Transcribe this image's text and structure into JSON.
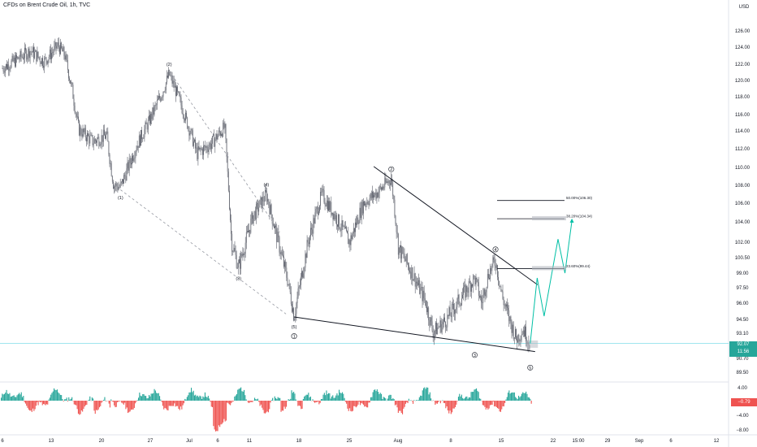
{
  "header": {
    "title": "CFDs on Brent Crude Oil, 1h, TVC"
  },
  "axis": {
    "currency": "USD"
  },
  "last_price": {
    "value": "92.07",
    "countdown": "11:56",
    "color": "#26a69a"
  },
  "oscillator": {
    "last_value": "−0.79",
    "color_up": "#26a69a",
    "color_down": "#ef5350"
  },
  "colors": {
    "candle": "#5d606b",
    "trendline": "#131722",
    "projection": "#00bfa5",
    "crosshair": "#80deea",
    "box": "#b2b5be"
  },
  "chart_data": {
    "type": "candlestick",
    "title": "CFDs on Brent Crude Oil, 1h, TVC",
    "ylabel": "USD",
    "ylim": [
      88.6,
      129.5
    ],
    "y_ticks": [
      "126.00",
      "124.00",
      "122.00",
      "120.00",
      "118.00",
      "116.00",
      "114.00",
      "112.00",
      "110.00",
      "108.00",
      "106.00",
      "104.00",
      "102.00",
      "100.50",
      "99.00",
      "97.50",
      "96.00",
      "94.50",
      "93.10",
      "91.70",
      "90.70",
      "89.50"
    ],
    "x_ticks": [
      "6",
      "13",
      "20",
      "27",
      "Jul",
      "6",
      "11",
      "18",
      "25",
      "Aug",
      "8",
      "15",
      "22",
      "15:00",
      "29",
      "Sep",
      "6",
      "12"
    ],
    "price_path": [
      {
        "t": "06-06",
        "p": 121.5
      },
      {
        "t": "06-08",
        "p": 122.5
      },
      {
        "t": "06-10",
        "p": 123.6
      },
      {
        "t": "06-12",
        "p": 122.3
      },
      {
        "t": "06-14",
        "p": 124.2
      },
      {
        "t": "06-15",
        "p": 123.0
      },
      {
        "t": "06-16",
        "p": 119.0
      },
      {
        "t": "06-17",
        "p": 114.2
      },
      {
        "t": "06-19",
        "p": 112.8
      },
      {
        "t": "06-21",
        "p": 113.5
      },
      {
        "t": "06-22",
        "p": 108.0
      },
      {
        "t": "06-23",
        "p": 107.8
      },
      {
        "t": "06-25",
        "p": 111.8
      },
      {
        "t": "06-27",
        "p": 115.0
      },
      {
        "t": "06-29",
        "p": 118.5
      },
      {
        "t": "06-30",
        "p": 120.8
      },
      {
        "t": "07-02",
        "p": 116.5
      },
      {
        "t": "07-04",
        "p": 111.5
      },
      {
        "t": "07-06",
        "p": 112.5
      },
      {
        "t": "07-08",
        "p": 114.5
      },
      {
        "t": "07-09",
        "p": 102.0
      },
      {
        "t": "07-10",
        "p": 99.5
      },
      {
        "t": "07-12",
        "p": 104.5
      },
      {
        "t": "07-14",
        "p": 107.0
      },
      {
        "t": "07-15",
        "p": 104.0
      },
      {
        "t": "07-17",
        "p": 98.5
      },
      {
        "t": "07-18",
        "p": 94.8
      },
      {
        "t": "07-20",
        "p": 102.0
      },
      {
        "t": "07-22",
        "p": 107.0
      },
      {
        "t": "07-24",
        "p": 104.5
      },
      {
        "t": "07-26",
        "p": 102.0
      },
      {
        "t": "07-28",
        "p": 106.0
      },
      {
        "t": "07-30",
        "p": 107.2
      },
      {
        "t": "08-01",
        "p": 108.8
      },
      {
        "t": "08-02",
        "p": 101.5
      },
      {
        "t": "08-04",
        "p": 99.0
      },
      {
        "t": "08-06",
        "p": 96.0
      },
      {
        "t": "08-07",
        "p": 93.2
      },
      {
        "t": "08-09",
        "p": 94.5
      },
      {
        "t": "08-11",
        "p": 96.5
      },
      {
        "t": "08-13",
        "p": 98.5
      },
      {
        "t": "08-14",
        "p": 96.0
      },
      {
        "t": "08-15",
        "p": 99.0
      },
      {
        "t": "08-16",
        "p": 100.2
      },
      {
        "t": "08-17",
        "p": 96.5
      },
      {
        "t": "08-18",
        "p": 94.5
      },
      {
        "t": "08-19",
        "p": 92.5
      },
      {
        "t": "08-20",
        "p": 93.5
      },
      {
        "t": "08-21",
        "p": 92.07
      }
    ],
    "wave_labels": [
      {
        "text": "(1)",
        "t": "06-23",
        "p": 107.8,
        "pos": "below"
      },
      {
        "text": "(2)",
        "t": "06-30",
        "p": 120.8,
        "pos": "above"
      },
      {
        "text": "(3)",
        "t": "07-10",
        "p": 99.5,
        "pos": "below"
      },
      {
        "text": "(4)",
        "t": "07-14",
        "p": 107.0,
        "pos": "above"
      },
      {
        "text": "(5)",
        "t": "07-18",
        "p": 94.8,
        "pos": "below"
      },
      {
        "text": "1",
        "t": "07-18",
        "p": 92.8,
        "pos": "circle"
      },
      {
        "text": "2",
        "t": "08-01",
        "p": 109.8,
        "pos": "circle"
      },
      {
        "text": "3",
        "t": "08-13",
        "p": 91.0,
        "pos": "circle"
      },
      {
        "text": "4",
        "t": "08-16",
        "p": 101.3,
        "pos": "circle"
      },
      {
        "text": "5",
        "t": "08-21",
        "p": 89.9,
        "pos": "circle"
      }
    ],
    "fib_levels": [
      {
        "label": "50.00%(106.30)",
        "price": 106.3
      },
      {
        "label": "38.20%(104.34)",
        "price": 104.34
      },
      {
        "label": "23.60%(99.44)",
        "price": 99.44
      }
    ],
    "projection": [
      {
        "t": "08-21",
        "p": 92.07
      },
      {
        "t": "08-22",
        "p": 98.5
      },
      {
        "t": "08-23",
        "p": 94.8
      },
      {
        "t": "08-25",
        "p": 102.3
      },
      {
        "t": "08-26",
        "p": 99.0
      },
      {
        "t": "08-27",
        "p": 104.1
      }
    ],
    "oscillator": {
      "ylim": [
        -9,
        5
      ],
      "y_ticks": [
        "4.00",
        "0.00",
        "−4.00",
        "−8.00"
      ],
      "last_value": -0.79
    }
  }
}
